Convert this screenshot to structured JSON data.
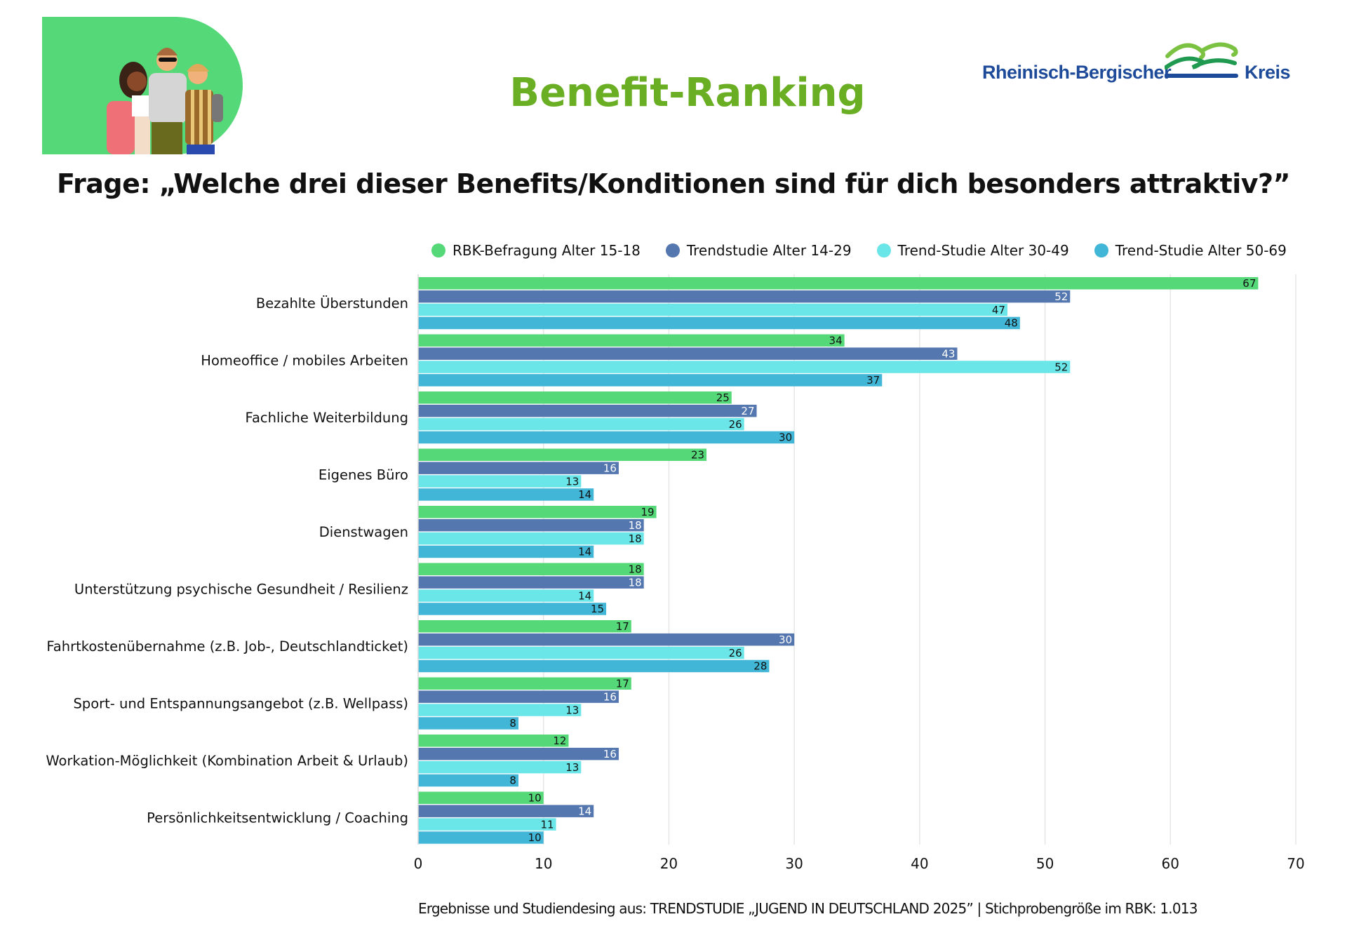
{
  "header": {
    "title": "Benefit-Ranking",
    "question": "Frage: „Welche drei dieser Benefits/Konditionen sind für dich besonders attraktiv?”",
    "logo_left": "Rheinisch-Bergischer",
    "logo_right": "Kreis",
    "illustration": "group-of-young-people-illustration"
  },
  "colors": {
    "title": "#6aaf23",
    "logo_text": "#1e4a9a",
    "hero_bg": "#55d877"
  },
  "footer": {
    "text": "Ergebnisse und Studiendesing aus: TRENDSTUDIE „JUGEND IN DEUTSCHLAND 2025”  | Stichprobengröße im RBK:  1.013"
  },
  "chart_data": {
    "type": "bar",
    "orientation": "horizontal",
    "title": "Benefit-Ranking",
    "xlabel": "",
    "ylabel": "",
    "xlim": [
      0,
      70
    ],
    "xticks": [
      0,
      10,
      20,
      30,
      40,
      50,
      60,
      70
    ],
    "grid": true,
    "legend_position": "top",
    "categories": [
      "Bezahlte Überstunden",
      "Homeoffice / mobiles Arbeiten",
      "Fachliche Weiterbildung",
      "Eigenes Büro",
      "Dienstwagen",
      "Unterstützung psychische Gesundheit / Resilienz",
      "Fahrtkostenübernahme (z.B. Job-, Deutschlandticket)",
      "Sport- und Entspannungsangebot (z.B. Wellpass)",
      "Workation-Möglichkeit (Kombination Arbeit & Urlaub)",
      "Persönlichkeitsentwicklung / Coaching"
    ],
    "series": [
      {
        "name": "RBK-Befragung Alter 15-18",
        "color": "#55d877",
        "label_color": "#111111",
        "values": [
          67,
          34,
          25,
          23,
          19,
          18,
          17,
          17,
          12,
          10
        ]
      },
      {
        "name": "Trendstudie Alter 14-29",
        "color": "#5577b0",
        "label_color": "#ffffff",
        "values": [
          52,
          43,
          27,
          16,
          18,
          18,
          30,
          16,
          16,
          14
        ]
      },
      {
        "name": "Trend-Studie Alter 30-49",
        "color": "#6ae5e8",
        "label_color": "#111111",
        "values": [
          47,
          52,
          26,
          13,
          18,
          14,
          26,
          13,
          13,
          11
        ]
      },
      {
        "name": "Trend-Studie Alter 50-69",
        "color": "#41b6d6",
        "label_color": "#111111",
        "values": [
          48,
          37,
          30,
          14,
          14,
          15,
          28,
          8,
          8,
          10
        ]
      }
    ]
  }
}
